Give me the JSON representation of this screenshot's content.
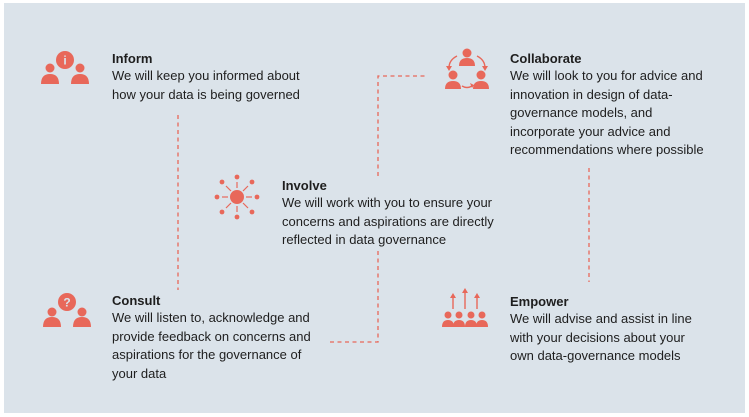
{
  "colors": {
    "background": "#dbe3ea",
    "accent": "#e8685a",
    "text": "#1e1e1e"
  },
  "stages": {
    "inform": {
      "icon": "group-info-icon",
      "title": "Inform",
      "description": "We will keep you informed about how your data is being governed"
    },
    "consult": {
      "icon": "group-question-icon",
      "title": "Consult",
      "description": "We will listen to, acknowledge and provide feedback on concerns and aspirations for the governance of your data"
    },
    "involve": {
      "icon": "network-hub-icon",
      "title": "Involve",
      "description": "We will work with you to ensure your concerns and aspirations are directly reflected in data governance"
    },
    "collaborate": {
      "icon": "cycle-people-icon",
      "title": "Collaborate",
      "description": "We will look to you for advice and innovation in design of data-governance models, and incorporate your advice and recommendations where possible"
    },
    "empower": {
      "icon": "people-arrows-up-icon",
      "title": "Empower",
      "description": "We will advise and assist in line with your decisions about your own data-governance models"
    }
  }
}
